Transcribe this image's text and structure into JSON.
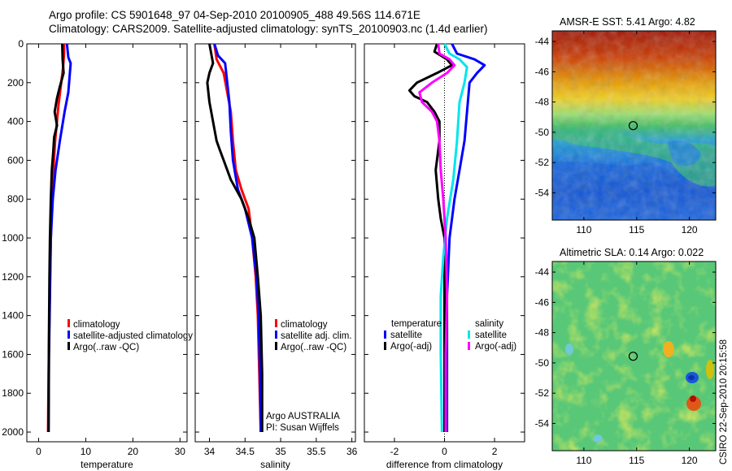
{
  "header": {
    "line1": "Argo profile: CS 5901648_97 04-Sep-2010 20100905_488 49.56S 114.671E",
    "line2": "Climatology: CARS2009. Satellite-adjusted climatology: synTS_20100903.nc (1.4d earlier)"
  },
  "colors": {
    "climatology": "#ff0000",
    "satellite": "#0000ff",
    "argo": "#000000",
    "sal_satellite": "#00e5ee",
    "sal_argo": "#ff00ff"
  },
  "chart_data": [
    {
      "type": "line",
      "id": "temperature",
      "xlabel": "temperature",
      "ylabel": "",
      "xlim": [
        -2.5,
        31.5
      ],
      "ylim": [
        2050,
        0
      ],
      "xticks": [
        "0",
        "10",
        "20",
        "30"
      ],
      "xtick_values": [
        0,
        10,
        20,
        30
      ],
      "yticks": [
        "0",
        "200",
        "400",
        "600",
        "800",
        "1000",
        "1200",
        "1400",
        "1600",
        "1800",
        "2000"
      ],
      "ytick_values": [
        0,
        200,
        400,
        600,
        800,
        1000,
        1200,
        1400,
        1600,
        1800,
        2000
      ],
      "series": [
        {
          "name": "climatology",
          "color": "#ff0000",
          "points": [
            [
              5.4,
              0
            ],
            [
              5.4,
              50
            ],
            [
              5.2,
              120
            ],
            [
              4.8,
              200
            ],
            [
              4.2,
              320
            ],
            [
              3.5,
              500
            ],
            [
              3.0,
              700
            ],
            [
              2.7,
              900
            ],
            [
              2.5,
              1100
            ],
            [
              2.3,
              1400
            ],
            [
              2.1,
              1700
            ],
            [
              2.0,
              2000
            ]
          ]
        },
        {
          "name": "satellite-adjusted climatology",
          "color": "#0000ff",
          "points": [
            [
              6.0,
              0
            ],
            [
              6.3,
              70
            ],
            [
              6.8,
              100
            ],
            [
              6.3,
              250
            ],
            [
              5.5,
              350
            ],
            [
              4.5,
              500
            ],
            [
              3.6,
              650
            ],
            [
              3.0,
              800
            ],
            [
              2.6,
              1000
            ],
            [
              2.4,
              1300
            ],
            [
              2.2,
              1600
            ],
            [
              2.1,
              2000
            ]
          ]
        },
        {
          "name": "Argo(..raw -QC)",
          "color": "#000000",
          "points": [
            [
              5.0,
              0
            ],
            [
              5.1,
              80
            ],
            [
              5.3,
              150
            ],
            [
              4.5,
              220
            ],
            [
              3.9,
              280
            ],
            [
              3.4,
              350
            ],
            [
              3.9,
              420
            ],
            [
              3.3,
              480
            ],
            [
              3.1,
              560
            ],
            [
              2.8,
              650
            ],
            [
              2.6,
              800
            ],
            [
              2.4,
              1000
            ],
            [
              2.3,
              1200
            ],
            [
              2.2,
              1500
            ],
            [
              2.1,
              2000
            ]
          ]
        }
      ],
      "legend": [
        "climatology",
        "satellite-adjusted climatology",
        "Argo(..raw -QC)"
      ]
    },
    {
      "type": "line",
      "id": "salinity",
      "xlabel": "salinity",
      "ylabel": "",
      "xlim": [
        33.8,
        36.05
      ],
      "ylim": [
        2050,
        0
      ],
      "xticks": [
        "34",
        "34.5",
        "35",
        "35.5",
        "36"
      ],
      "xtick_values": [
        34,
        34.5,
        35,
        35.5,
        36
      ],
      "series": [
        {
          "name": "climatology",
          "color": "#ff0000",
          "points": [
            [
              34.07,
              0
            ],
            [
              34.1,
              80
            ],
            [
              34.2,
              150
            ],
            [
              34.25,
              250
            ],
            [
              34.3,
              350
            ],
            [
              34.33,
              500
            ],
            [
              34.37,
              650
            ],
            [
              34.45,
              750
            ],
            [
              34.55,
              850
            ],
            [
              34.6,
              1000
            ],
            [
              34.65,
              1200
            ],
            [
              34.68,
              1400
            ],
            [
              34.7,
              1700
            ],
            [
              34.72,
              2000
            ]
          ]
        },
        {
          "name": "satellite adj. clim.",
          "color": "#0000ff",
          "points": [
            [
              34.07,
              0
            ],
            [
              34.12,
              60
            ],
            [
              34.22,
              100
            ],
            [
              34.25,
              200
            ],
            [
              34.28,
              300
            ],
            [
              34.3,
              450
            ],
            [
              34.33,
              600
            ],
            [
              34.4,
              750
            ],
            [
              34.5,
              850
            ],
            [
              34.6,
              1000
            ],
            [
              34.66,
              1200
            ],
            [
              34.69,
              1400
            ],
            [
              34.71,
              1700
            ],
            [
              34.72,
              2000
            ]
          ]
        },
        {
          "name": "Argo(..raw -QC)",
          "color": "#000000",
          "points": [
            [
              34.0,
              0
            ],
            [
              34.05,
              100
            ],
            [
              34.0,
              150
            ],
            [
              33.97,
              200
            ],
            [
              34.0,
              300
            ],
            [
              34.05,
              400
            ],
            [
              34.1,
              500
            ],
            [
              34.15,
              550
            ],
            [
              34.2,
              600
            ],
            [
              34.3,
              700
            ],
            [
              34.45,
              800
            ],
            [
              34.55,
              900
            ],
            [
              34.63,
              1000
            ],
            [
              34.68,
              1200
            ],
            [
              34.72,
              1400
            ],
            [
              34.74,
              1700
            ],
            [
              34.74,
              2000
            ]
          ]
        }
      ],
      "legend": [
        "climatology",
        "satellite adj. clim.",
        "Argo(..raw -QC)"
      ],
      "annotation": [
        "Argo AUSTRALIA",
        "PI: Susan Wijffels"
      ]
    },
    {
      "type": "line",
      "id": "difference",
      "xlabel": "difference from climatology",
      "ylabel": "",
      "xlim": [
        -3.2,
        3.2
      ],
      "ylim": [
        2050,
        0
      ],
      "xticks": [
        "-2",
        "0",
        "2"
      ],
      "xtick_values": [
        -2,
        0,
        2
      ],
      "series": [
        {
          "name": "temperature satellite",
          "color": "#0000ff",
          "points": [
            [
              0.3,
              0
            ],
            [
              0.5,
              50
            ],
            [
              1.2,
              80
            ],
            [
              1.6,
              110
            ],
            [
              1.3,
              150
            ],
            [
              1.0,
              200
            ],
            [
              0.9,
              350
            ],
            [
              0.8,
              500
            ],
            [
              0.6,
              650
            ],
            [
              0.4,
              800
            ],
            [
              0.2,
              1000
            ],
            [
              0.1,
              1300
            ],
            [
              0.1,
              2000
            ]
          ]
        },
        {
          "name": "temperature Argo(-adj)",
          "color": "#000000",
          "points": [
            [
              -0.3,
              0
            ],
            [
              -0.4,
              40
            ],
            [
              0.1,
              80
            ],
            [
              0.3,
              110
            ],
            [
              -0.3,
              150
            ],
            [
              -1.1,
              200
            ],
            [
              -1.4,
              240
            ],
            [
              -1.2,
              270
            ],
            [
              -0.7,
              300
            ],
            [
              -0.4,
              350
            ],
            [
              -0.2,
              400
            ],
            [
              -0.2,
              500
            ],
            [
              -0.35,
              650
            ],
            [
              -0.25,
              800
            ],
            [
              -0.15,
              900
            ],
            [
              0.0,
              1000
            ],
            [
              0.0,
              2000
            ]
          ]
        },
        {
          "name": "salinity satellite",
          "color": "#00e5ee",
          "points": [
            [
              0.0,
              0
            ],
            [
              0.2,
              50
            ],
            [
              0.6,
              80
            ],
            [
              0.9,
              120
            ],
            [
              0.8,
              200
            ],
            [
              0.6,
              300
            ],
            [
              0.5,
              500
            ],
            [
              0.35,
              700
            ],
            [
              0.1,
              900
            ],
            [
              -0.05,
              1100
            ],
            [
              -0.15,
              1300
            ],
            [
              -0.15,
              1600
            ],
            [
              -0.1,
              2000
            ]
          ]
        },
        {
          "name": "salinity Argo(-adj)",
          "color": "#ff00ff",
          "points": [
            [
              -0.25,
              0
            ],
            [
              -0.2,
              50
            ],
            [
              0.2,
              80
            ],
            [
              0.4,
              110
            ],
            [
              0.1,
              150
            ],
            [
              -0.5,
              200
            ],
            [
              -1.0,
              250
            ],
            [
              -0.9,
              300
            ],
            [
              -0.5,
              350
            ],
            [
              -0.3,
              400
            ],
            [
              -0.2,
              500
            ],
            [
              -0.15,
              650
            ],
            [
              -0.05,
              800
            ],
            [
              0.05,
              1000
            ],
            [
              0.1,
              1300
            ],
            [
              0.05,
              1600
            ],
            [
              0.05,
              2000
            ]
          ]
        }
      ],
      "legend_groups": [
        {
          "title": "temperature",
          "items": [
            "satellite",
            "Argo(-adj)"
          ]
        },
        {
          "title": "salinity",
          "items": [
            "satellite",
            "Argo(-adj)"
          ]
        }
      ]
    },
    {
      "type": "heatmap",
      "id": "sst-map",
      "title": "AMSR-E SST: 5.41 Argo: 4.82",
      "xlim": [
        107,
        122.5
      ],
      "ylim": [
        -55.8,
        -43.3
      ],
      "xticks": [
        "110",
        "115",
        "120"
      ],
      "xtick_values": [
        110,
        115,
        120
      ],
      "yticks": [
        "-44",
        "-46",
        "-48",
        "-50",
        "-52",
        "-54"
      ],
      "ytick_values": [
        -44,
        -46,
        -48,
        -50,
        -52,
        -54
      ],
      "marker": {
        "lon": 114.671,
        "lat": -49.56
      }
    },
    {
      "type": "heatmap",
      "id": "sla-map",
      "title": "Altimetric SLA: 0.14 Argo: 0.022",
      "xlim": [
        107,
        122.5
      ],
      "ylim": [
        -55.8,
        -43.3
      ],
      "xticks": [
        "110",
        "115",
        "120"
      ],
      "xtick_values": [
        110,
        115,
        120
      ],
      "yticks": [
        "-44",
        "-46",
        "-48",
        "-50",
        "-52",
        "-54"
      ],
      "ytick_values": [
        -44,
        -46,
        -48,
        -50,
        -52,
        -54
      ],
      "marker": {
        "lon": 114.671,
        "lat": -49.56
      }
    }
  ],
  "side_label": "CSIRO 22-Sep-2010 20:15:58"
}
